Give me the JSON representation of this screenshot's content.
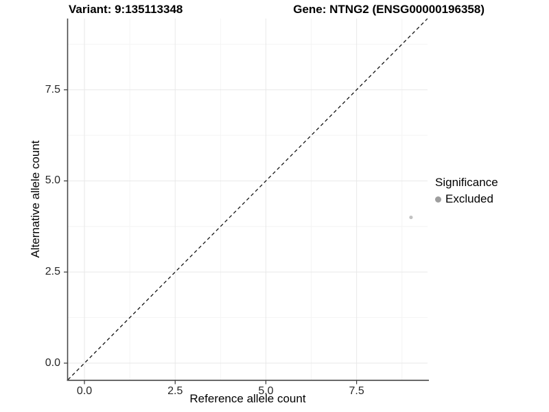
{
  "chart_data": {
    "type": "scatter",
    "title_left": "Variant: 9:135113348",
    "title_right": "Gene: NTNG2 (ENSG00000196358)",
    "xlabel": "Reference allele count",
    "ylabel": "Alternative allele count",
    "xlim": [
      -0.455,
      9.455
    ],
    "ylim": [
      -0.455,
      9.455
    ],
    "x_ticks": [
      0.0,
      2.5,
      5.0,
      7.5
    ],
    "x_tick_labels": [
      "0.0",
      "2.5",
      "5.0",
      "7.5"
    ],
    "y_ticks": [
      0.0,
      2.5,
      5.0,
      7.5
    ],
    "y_tick_labels": [
      "0.0",
      "2.5",
      "5.0",
      "7.5"
    ],
    "minor_step": 1.25,
    "grid": true,
    "reference_line": {
      "slope": 1,
      "intercept": 0,
      "style": "dashed"
    },
    "series": [
      {
        "name": "Excluded",
        "points": [
          {
            "x": 9,
            "y": 4
          }
        ]
      }
    ],
    "legend": {
      "title": "Significance",
      "position": "right",
      "items": [
        {
          "label": "Excluded"
        }
      ]
    },
    "style": {
      "point_color": "#c2c2c2",
      "legend_dot_color": "#9e9e9e",
      "grid_major_color": "#e8e8e8",
      "grid_minor_color": "#f4f4f4",
      "axis_line_color": "#464646",
      "tick_color": "#333333",
      "dashed_line_color": "#111111",
      "text_color": "#000000",
      "tick_label_color": "#262626"
    }
  }
}
